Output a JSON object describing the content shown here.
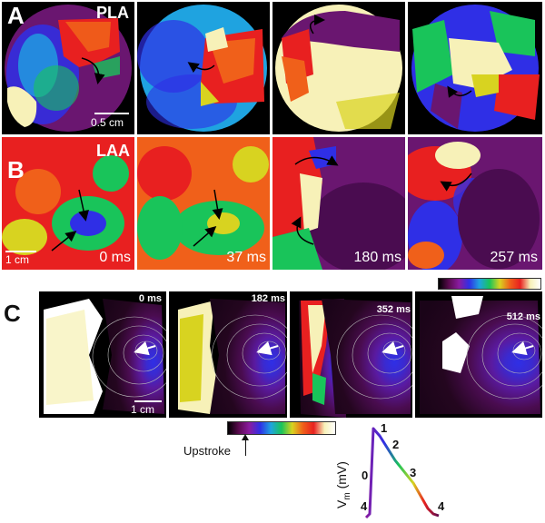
{
  "panels": {
    "A": {
      "letter": "A",
      "label": "PLA",
      "scale_bar": "0.5 cm"
    },
    "B": {
      "letter": "B",
      "label": "LAA",
      "scale_bar": "1 cm",
      "times": [
        "0 ms",
        "37 ms",
        "180 ms",
        "257 ms"
      ]
    },
    "C": {
      "letter": "C",
      "scale_bar": "1 cm",
      "times": [
        "0 ms",
        "182 ms",
        "352 ms",
        "512 ms"
      ]
    }
  },
  "legend": {
    "upstroke_label": "Upstroke",
    "vm_axis_label": "V",
    "vm_axis_sub": "m",
    "vm_axis_unit": " (mV)",
    "phase_labels": [
      "0",
      "1",
      "2",
      "3",
      "4",
      "4"
    ]
  },
  "colors": {
    "tile_background": "#000000",
    "colormap": [
      "#000000",
      "#5b0a4f",
      "#8a1ba0",
      "#2f2fe6",
      "#1fa3e0",
      "#19c45a",
      "#d8d320",
      "#f0601a",
      "#e82020",
      "#f7f1b8",
      "#ffffff"
    ]
  }
}
